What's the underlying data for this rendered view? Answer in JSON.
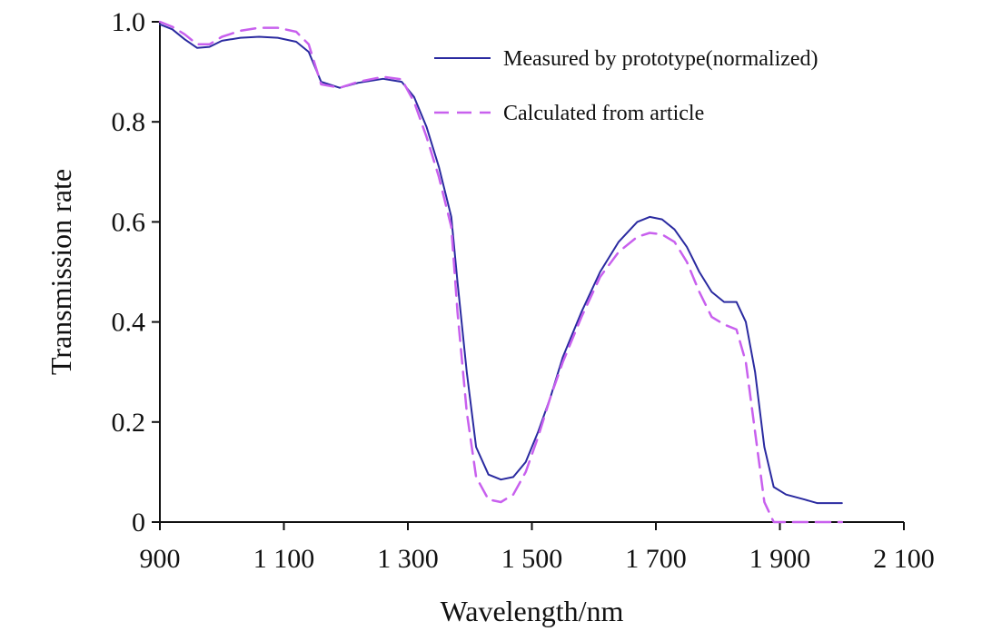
{
  "chart_data": {
    "type": "line",
    "title": "",
    "xlabel": "Wavelength/nm",
    "ylabel": "Transmission rate",
    "xlim": [
      900,
      2100
    ],
    "ylim": [
      0,
      1.0
    ],
    "x_ticks": [
      900,
      1100,
      1300,
      1500,
      1700,
      1900,
      2100
    ],
    "x_tick_labels": [
      "900",
      "1 100",
      "1 300",
      "1 500",
      "1 700",
      "1 900",
      "2 100"
    ],
    "y_ticks": [
      0,
      0.2,
      0.4,
      0.6,
      0.8,
      1.0
    ],
    "y_tick_labels": [
      "0",
      "0.2",
      "0.4",
      "0.6",
      "0.8",
      "1.0"
    ],
    "grid": false,
    "legend_position": "top-right",
    "series": [
      {
        "name": "Measured by prototype(normalized)",
        "color": "#2a2aa0",
        "style": "solid",
        "points": [
          [
            900,
            0.995
          ],
          [
            920,
            0.985
          ],
          [
            940,
            0.965
          ],
          [
            960,
            0.948
          ],
          [
            980,
            0.95
          ],
          [
            1000,
            0.962
          ],
          [
            1030,
            0.968
          ],
          [
            1060,
            0.97
          ],
          [
            1090,
            0.968
          ],
          [
            1120,
            0.96
          ],
          [
            1140,
            0.94
          ],
          [
            1160,
            0.88
          ],
          [
            1190,
            0.868
          ],
          [
            1220,
            0.878
          ],
          [
            1260,
            0.886
          ],
          [
            1290,
            0.88
          ],
          [
            1310,
            0.85
          ],
          [
            1330,
            0.79
          ],
          [
            1350,
            0.71
          ],
          [
            1370,
            0.61
          ],
          [
            1380,
            0.48
          ],
          [
            1395,
            0.3
          ],
          [
            1410,
            0.15
          ],
          [
            1430,
            0.095
          ],
          [
            1450,
            0.085
          ],
          [
            1470,
            0.09
          ],
          [
            1490,
            0.12
          ],
          [
            1510,
            0.18
          ],
          [
            1530,
            0.25
          ],
          [
            1550,
            0.33
          ],
          [
            1580,
            0.42
          ],
          [
            1610,
            0.5
          ],
          [
            1640,
            0.56
          ],
          [
            1670,
            0.6
          ],
          [
            1690,
            0.61
          ],
          [
            1710,
            0.605
          ],
          [
            1730,
            0.585
          ],
          [
            1750,
            0.55
          ],
          [
            1770,
            0.5
          ],
          [
            1790,
            0.46
          ],
          [
            1810,
            0.44
          ],
          [
            1830,
            0.44
          ],
          [
            1845,
            0.4
          ],
          [
            1860,
            0.3
          ],
          [
            1875,
            0.15
          ],
          [
            1890,
            0.07
          ],
          [
            1910,
            0.055
          ],
          [
            1940,
            0.045
          ],
          [
            1960,
            0.038
          ],
          [
            2000,
            0.038
          ]
        ]
      },
      {
        "name": "Calculated from article",
        "color": "#c860ee",
        "style": "dashed",
        "points": [
          [
            900,
            1.0
          ],
          [
            920,
            0.99
          ],
          [
            940,
            0.975
          ],
          [
            960,
            0.955
          ],
          [
            980,
            0.955
          ],
          [
            1000,
            0.97
          ],
          [
            1030,
            0.982
          ],
          [
            1060,
            0.988
          ],
          [
            1090,
            0.988
          ],
          [
            1120,
            0.98
          ],
          [
            1140,
            0.955
          ],
          [
            1160,
            0.875
          ],
          [
            1190,
            0.868
          ],
          [
            1220,
            0.88
          ],
          [
            1260,
            0.89
          ],
          [
            1290,
            0.885
          ],
          [
            1310,
            0.84
          ],
          [
            1330,
            0.77
          ],
          [
            1350,
            0.69
          ],
          [
            1370,
            0.59
          ],
          [
            1380,
            0.42
          ],
          [
            1395,
            0.22
          ],
          [
            1410,
            0.09
          ],
          [
            1430,
            0.045
          ],
          [
            1450,
            0.04
          ],
          [
            1470,
            0.055
          ],
          [
            1490,
            0.1
          ],
          [
            1510,
            0.17
          ],
          [
            1530,
            0.25
          ],
          [
            1550,
            0.32
          ],
          [
            1580,
            0.41
          ],
          [
            1610,
            0.49
          ],
          [
            1640,
            0.54
          ],
          [
            1670,
            0.57
          ],
          [
            1690,
            0.578
          ],
          [
            1710,
            0.575
          ],
          [
            1730,
            0.56
          ],
          [
            1750,
            0.52
          ],
          [
            1770,
            0.46
          ],
          [
            1790,
            0.41
          ],
          [
            1810,
            0.395
          ],
          [
            1830,
            0.385
          ],
          [
            1845,
            0.32
          ],
          [
            1860,
            0.18
          ],
          [
            1875,
            0.04
          ],
          [
            1890,
            0.0
          ],
          [
            1910,
            0.0
          ],
          [
            1940,
            0.0
          ],
          [
            1970,
            0.0
          ],
          [
            2000,
            0.0
          ]
        ]
      }
    ]
  }
}
